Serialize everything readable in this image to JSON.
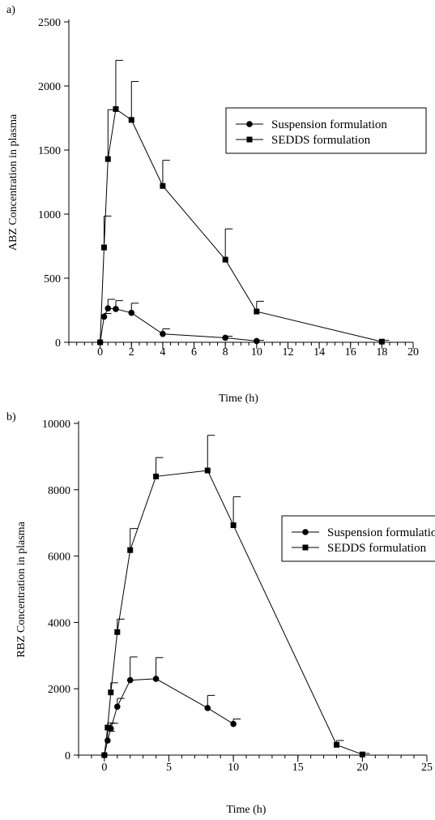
{
  "chart_data": [
    {
      "panel_label": "a)",
      "type": "line",
      "xlabel": "Time (h)",
      "ylabel": "ABZ  Concentration  in  plasma",
      "xlim": [
        -2,
        20
      ],
      "ylim": [
        0,
        2500
      ],
      "xticks": [
        0,
        2,
        4,
        6,
        8,
        10,
        12,
        14,
        16,
        18,
        20
      ],
      "xminor_step": 0.5,
      "yticks": [
        0,
        500,
        1000,
        1500,
        2000,
        2500
      ],
      "legend_position": "right",
      "series": [
        {
          "name": "Suspension formulation",
          "marker": "circle",
          "x": [
            0,
            0.25,
            0.5,
            1,
            2,
            4,
            8,
            10
          ],
          "y": [
            0,
            200,
            265,
            260,
            230,
            65,
            35,
            10
          ],
          "err": [
            0,
            25,
            70,
            65,
            75,
            40,
            12,
            5
          ]
        },
        {
          "name": "SEDDS formulation",
          "marker": "square",
          "x": [
            0,
            0.25,
            0.5,
            1,
            2,
            4,
            8,
            10,
            18
          ],
          "y": [
            0,
            740,
            1430,
            1820,
            1735,
            1220,
            645,
            240,
            5
          ],
          "err": [
            0,
            245,
            385,
            380,
            300,
            200,
            240,
            80,
            10
          ]
        }
      ]
    },
    {
      "panel_label": "b)",
      "type": "line",
      "xlabel": "Time (h)",
      "ylabel": "RBZ  Concentration  in  plasma",
      "xlim": [
        -2,
        25
      ],
      "ylim": [
        0,
        10000
      ],
      "xticks": [
        0,
        5,
        10,
        15,
        20,
        25
      ],
      "xminor_step": 1,
      "yticks": [
        0,
        2000,
        4000,
        6000,
        8000,
        10000
      ],
      "legend_position": "right",
      "series": [
        {
          "name": "Suspension formulation",
          "marker": "circle",
          "x": [
            0,
            0.25,
            0.5,
            1,
            2,
            4,
            8,
            10
          ],
          "y": [
            0,
            440,
            800,
            1460,
            2260,
            2300,
            1420,
            940
          ],
          "err": [
            0,
            280,
            160,
            250,
            700,
            640,
            380,
            150
          ]
        },
        {
          "name": "SEDDS formulation",
          "marker": "square",
          "x": [
            0,
            0.25,
            0.5,
            1,
            2,
            4,
            8,
            10,
            18,
            20
          ],
          "y": [
            0,
            830,
            1890,
            3710,
            6180,
            8400,
            8580,
            6930,
            310,
            20
          ],
          "err": [
            0,
            140,
            290,
            390,
            650,
            570,
            1060,
            860,
            130,
            30
          ]
        }
      ]
    }
  ]
}
